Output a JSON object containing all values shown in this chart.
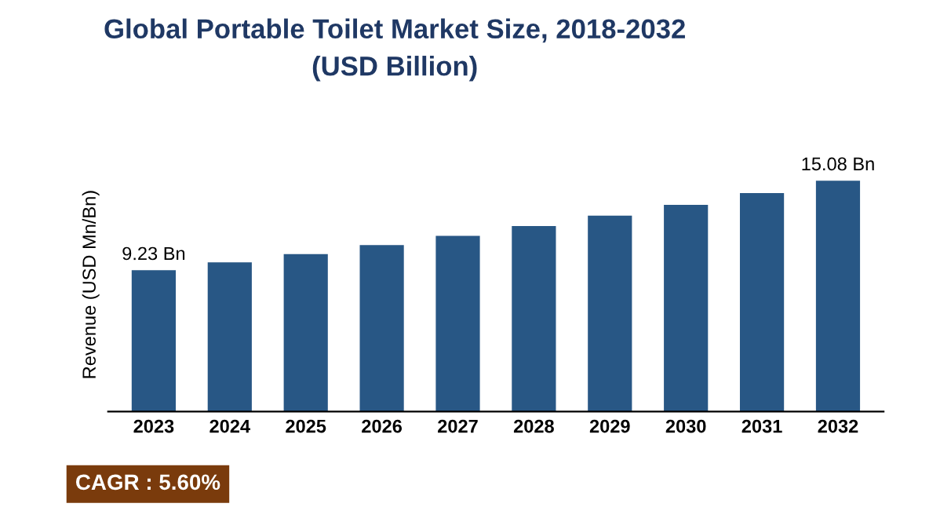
{
  "chart_data": {
    "type": "bar",
    "title": "Global Portable Toilet Market Size, 2018-2032\n(USD Billion)",
    "ylabel": "Revenue (USD Mn/Bn)",
    "categories": [
      "2023",
      "2024",
      "2025",
      "2026",
      "2027",
      "2028",
      "2029",
      "2030",
      "2031",
      "2032"
    ],
    "values": [
      9.23,
      9.75,
      10.29,
      10.87,
      11.48,
      12.12,
      12.8,
      13.51,
      14.27,
      15.08
    ],
    "value_labels": [
      "9.23 Bn",
      null,
      null,
      null,
      null,
      null,
      null,
      null,
      null,
      "15.08 Bn"
    ],
    "color": "#285785",
    "annotations": [
      "CAGR : 5.60%"
    ],
    "grid": false,
    "legend": false
  }
}
